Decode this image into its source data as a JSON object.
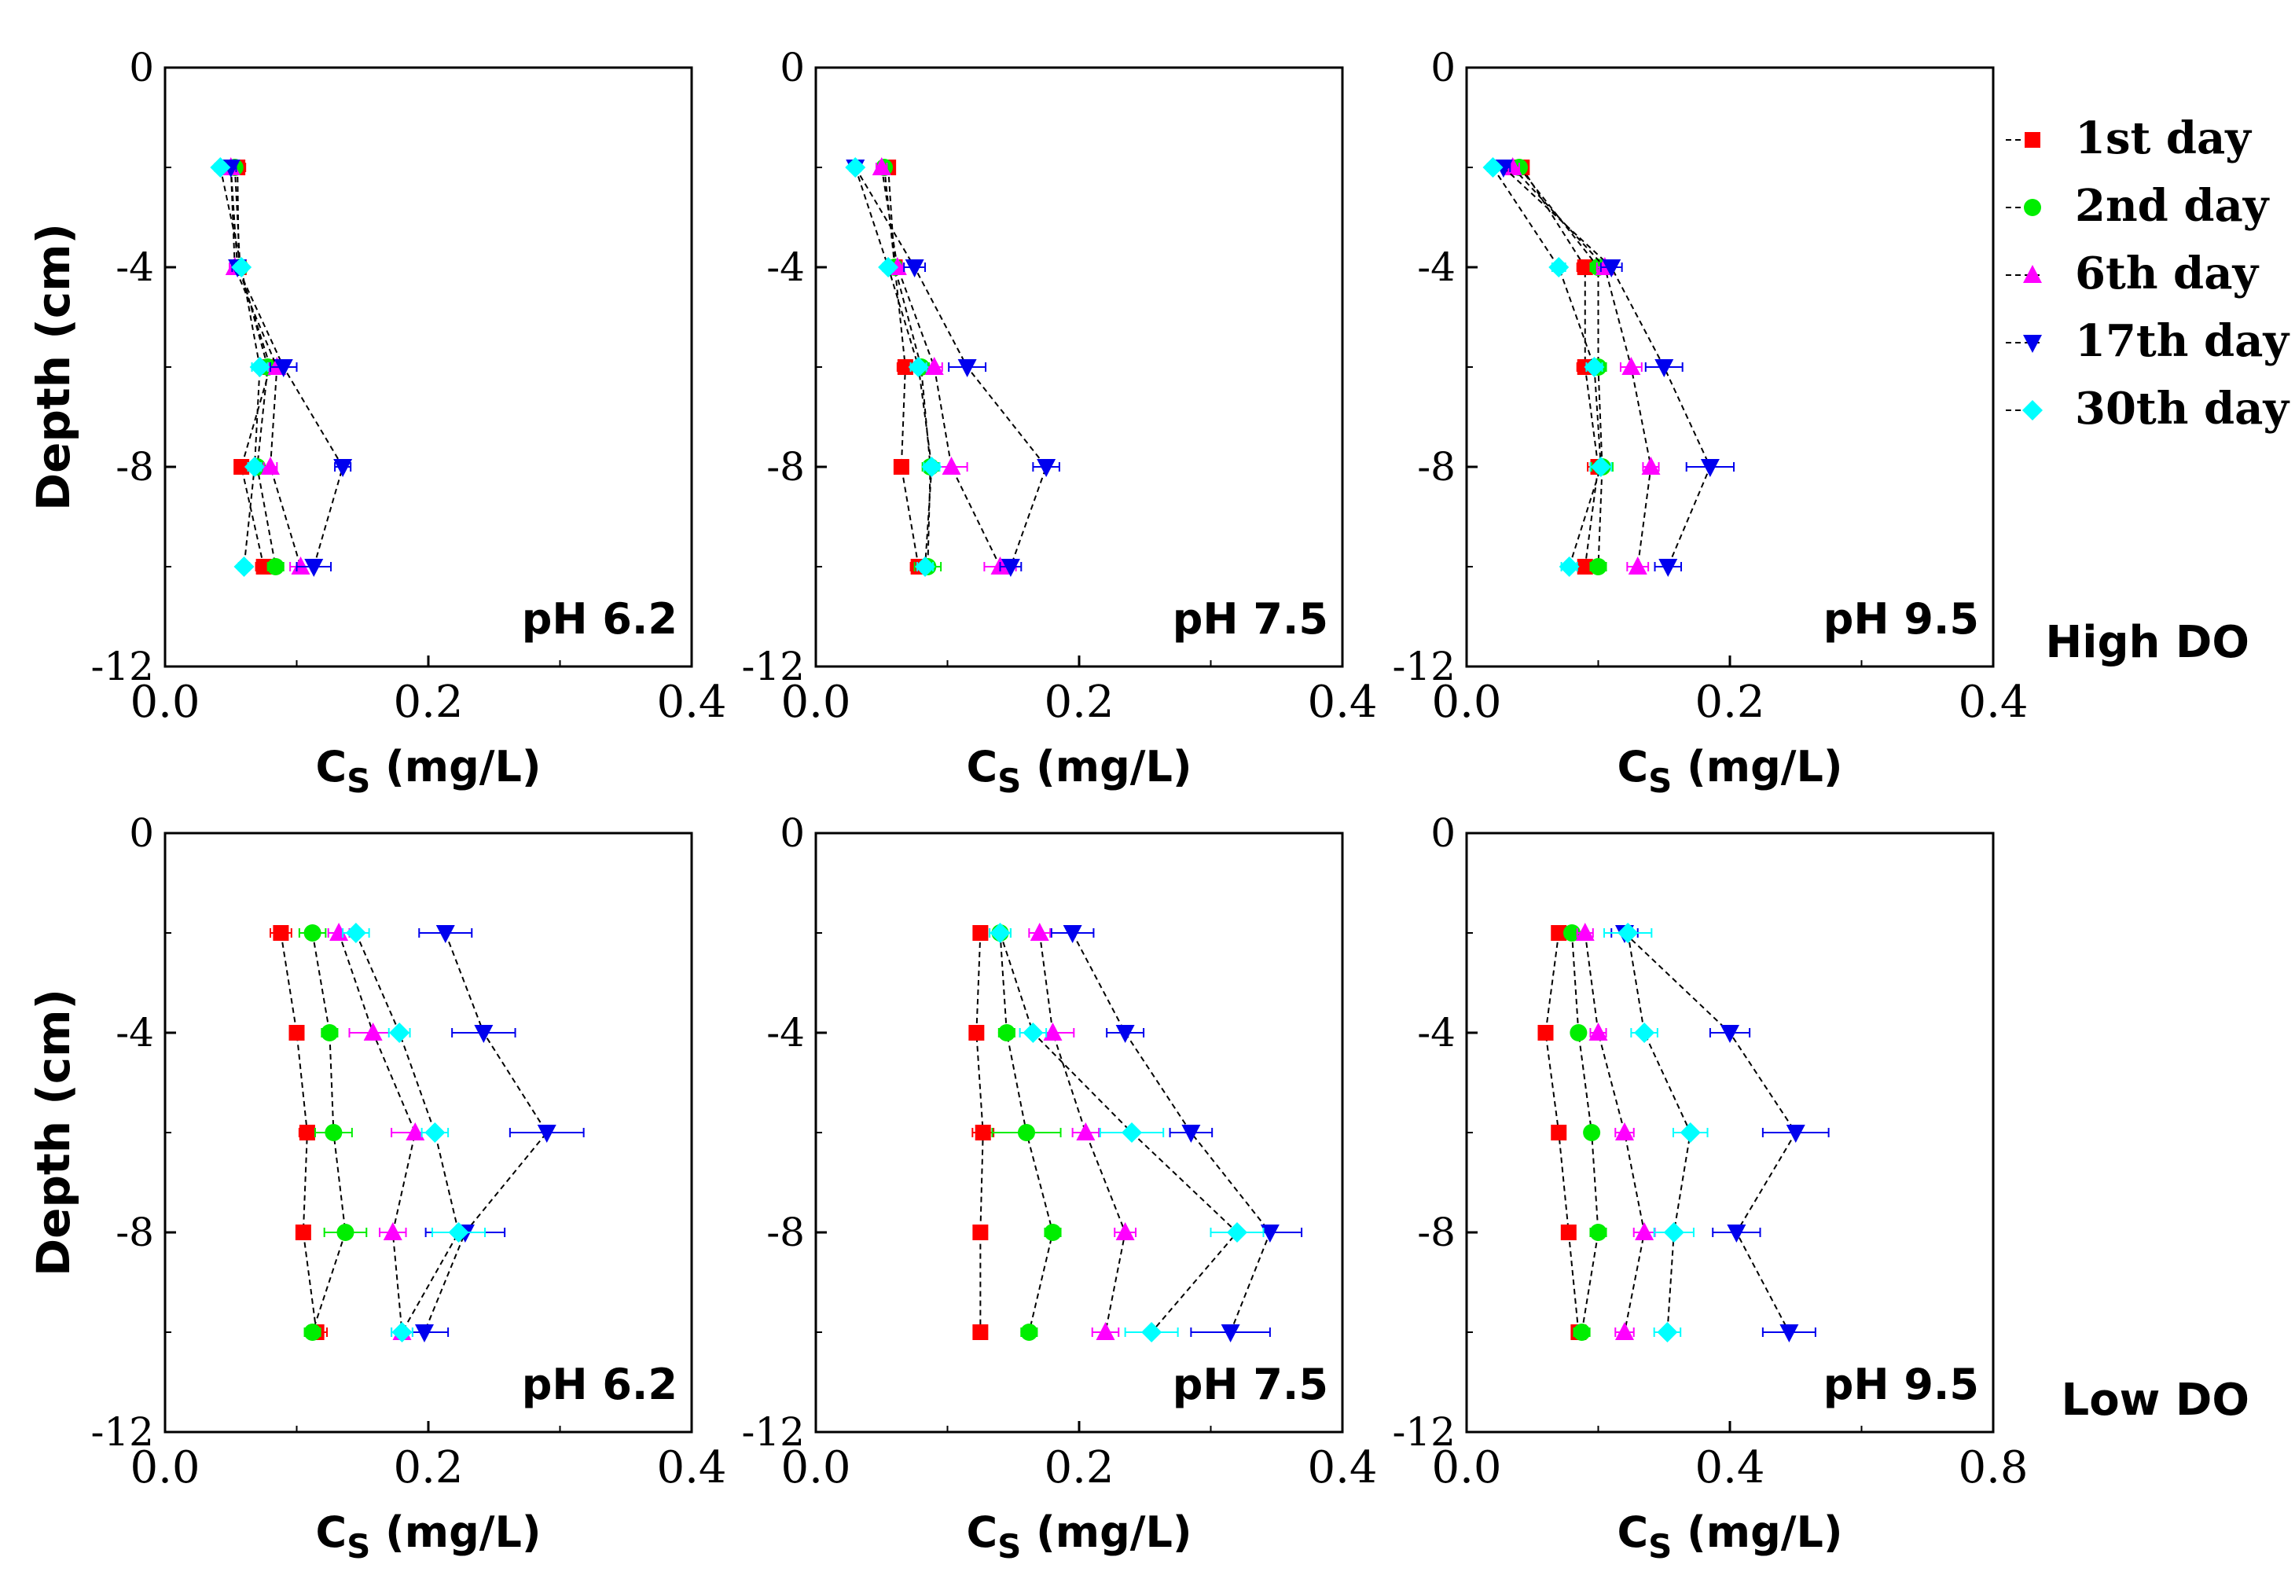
{
  "figure": {
    "legend": [
      {
        "label": "1st day",
        "color": "#ff0000",
        "marker": "square"
      },
      {
        "label": "2nd day",
        "color": "#00ee00",
        "marker": "circle"
      },
      {
        "label": "6th day",
        "color": "#ff00ff",
        "marker": "triangle-up"
      },
      {
        "label": "17th day",
        "color": "#0000ee",
        "marker": "triangle-down"
      },
      {
        "label": "30th day",
        "color": "#00ffff",
        "marker": "diamond"
      }
    ],
    "row_labels": [
      "High DO",
      "Low DO"
    ],
    "y_tick_labels": [
      "0",
      "-4",
      "-8",
      "-12"
    ],
    "x_tick_labels_04": [
      "0.0",
      "0.2",
      "0.4"
    ],
    "x_tick_labels_08": [
      "0.0",
      "0.4",
      "0.8"
    ],
    "xlabel_main": "C",
    "xlabel_sub": "S",
    "xlabel_unit": " (mg/L)",
    "ylabel": "Depth (cm)"
  },
  "chart_data": [
    {
      "type": "scatter",
      "panel": "pH 6.2",
      "row": "High DO",
      "xlim": [
        0,
        0.4
      ],
      "ylim": [
        -12,
        0
      ],
      "y": [
        -2,
        -4,
        -6,
        -8,
        -10
      ],
      "series": [
        {
          "name": "1st day",
          "x": [
            0.055,
            0.056,
            0.08,
            0.058,
            0.075
          ],
          "err": [
            0.006,
            0.004,
            0.006,
            0.005,
            0.006
          ]
        },
        {
          "name": "2nd day",
          "x": [
            0.053,
            0.057,
            0.078,
            0.07,
            0.084
          ],
          "err": [
            0.005,
            0.004,
            0.006,
            0.005,
            0.006
          ]
        },
        {
          "name": "6th day",
          "x": [
            0.05,
            0.053,
            0.085,
            0.08,
            0.103
          ],
          "err": [
            0.004,
            0.004,
            0.006,
            0.005,
            0.008
          ]
        },
        {
          "name": "17th day",
          "x": [
            0.05,
            0.055,
            0.09,
            0.135,
            0.113
          ],
          "err": [
            0.004,
            0.004,
            0.01,
            0.006,
            0.013
          ]
        },
        {
          "name": "30th day",
          "x": [
            0.042,
            0.058,
            0.072,
            0.068,
            0.06
          ],
          "err": [
            0.004,
            0.004,
            0.006,
            0.005,
            0.004
          ]
        }
      ]
    },
    {
      "type": "scatter",
      "panel": "pH 7.5",
      "row": "High DO",
      "xlim": [
        0,
        0.4
      ],
      "ylim": [
        -12,
        0
      ],
      "y": [
        -2,
        -4,
        -6,
        -8,
        -10
      ],
      "series": [
        {
          "name": "1st day",
          "x": [
            0.055,
            0.06,
            0.068,
            0.065,
            0.078
          ],
          "err": [
            0.005,
            0.004,
            0.006,
            0.004,
            0.006
          ]
        },
        {
          "name": "2nd day",
          "x": [
            0.052,
            0.06,
            0.08,
            0.087,
            0.085
          ],
          "err": [
            0.005,
            0.004,
            0.006,
            0.006,
            0.01
          ]
        },
        {
          "name": "6th day",
          "x": [
            0.05,
            0.062,
            0.09,
            0.103,
            0.14
          ],
          "err": [
            0.004,
            0.004,
            0.006,
            0.012,
            0.012
          ]
        },
        {
          "name": "17th day",
          "x": [
            0.03,
            0.075,
            0.115,
            0.175,
            0.148
          ],
          "err": [
            0.004,
            0.008,
            0.014,
            0.01,
            0.008
          ]
        },
        {
          "name": "30th day",
          "x": [
            0.03,
            0.055,
            0.078,
            0.088,
            0.083
          ],
          "err": [
            0.004,
            0.004,
            0.006,
            0.006,
            0.006
          ]
        }
      ]
    },
    {
      "type": "scatter",
      "panel": "pH 9.5",
      "row": "High DO",
      "xlim": [
        0,
        0.4
      ],
      "ylim": [
        -12,
        0
      ],
      "y": [
        -2,
        -4,
        -6,
        -8,
        -10
      ],
      "series": [
        {
          "name": "1st day",
          "x": [
            0.042,
            0.09,
            0.09,
            0.1,
            0.09
          ],
          "err": [
            0.005,
            0.006,
            0.006,
            0.008,
            0.006
          ]
        },
        {
          "name": "2nd day",
          "x": [
            0.04,
            0.1,
            0.1,
            0.103,
            0.1
          ],
          "err": [
            0.005,
            0.006,
            0.006,
            0.008,
            0.006
          ]
        },
        {
          "name": "6th day",
          "x": [
            0.035,
            0.105,
            0.125,
            0.14,
            0.13
          ],
          "err": [
            0.005,
            0.006,
            0.008,
            0.006,
            0.008
          ]
        },
        {
          "name": "17th day",
          "x": [
            0.028,
            0.11,
            0.15,
            0.185,
            0.153
          ],
          "err": [
            0.005,
            0.008,
            0.014,
            0.018,
            0.01
          ]
        },
        {
          "name": "30th day",
          "x": [
            0.02,
            0.07,
            0.097,
            0.102,
            0.078
          ],
          "err": [
            0.004,
            0.005,
            0.006,
            0.008,
            0.006
          ]
        }
      ]
    },
    {
      "type": "scatter",
      "panel": "pH 6.2",
      "row": "Low DO",
      "xlim": [
        0,
        0.4
      ],
      "ylim": [
        -12,
        0
      ],
      "y": [
        -2,
        -4,
        -6,
        -8,
        -10
      ],
      "series": [
        {
          "name": "1st day",
          "x": [
            0.088,
            0.1,
            0.108,
            0.105,
            0.115
          ],
          "err": [
            0.008,
            0.005,
            0.006,
            0.005,
            0.008
          ]
        },
        {
          "name": "2nd day",
          "x": [
            0.112,
            0.125,
            0.128,
            0.137,
            0.112
          ],
          "err": [
            0.01,
            0.006,
            0.014,
            0.016,
            0.006
          ]
        },
        {
          "name": "6th day",
          "x": [
            0.132,
            0.158,
            0.19,
            0.173,
            0.18
          ],
          "err": [
            0.008,
            0.018,
            0.018,
            0.01,
            0.008
          ]
        },
        {
          "name": "17th day",
          "x": [
            0.213,
            0.242,
            0.29,
            0.228,
            0.197
          ],
          "err": [
            0.02,
            0.024,
            0.028,
            0.03,
            0.018
          ]
        },
        {
          "name": "30th day",
          "x": [
            0.145,
            0.178,
            0.205,
            0.223,
            0.18
          ],
          "err": [
            0.01,
            0.008,
            0.01,
            0.02,
            0.008
          ]
        }
      ]
    },
    {
      "type": "scatter",
      "panel": "pH 7.5",
      "row": "Low DO",
      "xlim": [
        0,
        0.4
      ],
      "ylim": [
        -12,
        0
      ],
      "y": [
        -2,
        -4,
        -6,
        -8,
        -10
      ],
      "series": [
        {
          "name": "1st day",
          "x": [
            0.125,
            0.122,
            0.127,
            0.125,
            0.125
          ],
          "err": [
            0.004,
            0.004,
            0.008,
            0.004,
            0.004
          ]
        },
        {
          "name": "2nd day",
          "x": [
            0.14,
            0.145,
            0.16,
            0.18,
            0.162
          ],
          "err": [
            0.008,
            0.006,
            0.026,
            0.006,
            0.006
          ]
        },
        {
          "name": "6th day",
          "x": [
            0.17,
            0.18,
            0.205,
            0.235,
            0.22
          ],
          "err": [
            0.008,
            0.016,
            0.01,
            0.008,
            0.01
          ]
        },
        {
          "name": "17th day",
          "x": [
            0.195,
            0.235,
            0.285,
            0.345,
            0.315
          ],
          "err": [
            0.016,
            0.014,
            0.016,
            0.024,
            0.03
          ]
        },
        {
          "name": "30th day",
          "x": [
            0.14,
            0.165,
            0.24,
            0.32,
            0.255
          ],
          "err": [
            0.008,
            0.01,
            0.024,
            0.02,
            0.02
          ]
        }
      ]
    },
    {
      "type": "scatter",
      "panel": "pH 9.5",
      "row": "Low DO",
      "xlim": [
        0,
        0.8
      ],
      "ylim": [
        -12,
        0
      ],
      "y": [
        -2,
        -4,
        -6,
        -8,
        -10
      ],
      "series": [
        {
          "name": "1st day",
          "x": [
            0.14,
            0.12,
            0.14,
            0.155,
            0.17
          ],
          "err": [
            0.01,
            0.008,
            0.008,
            0.01,
            0.01
          ]
        },
        {
          "name": "2nd day",
          "x": [
            0.16,
            0.17,
            0.19,
            0.2,
            0.175
          ],
          "err": [
            0.01,
            0.008,
            0.01,
            0.012,
            0.012
          ]
        },
        {
          "name": "6th day",
          "x": [
            0.18,
            0.2,
            0.24,
            0.27,
            0.24
          ],
          "err": [
            0.012,
            0.012,
            0.014,
            0.016,
            0.014
          ]
        },
        {
          "name": "17th day",
          "x": [
            0.24,
            0.4,
            0.5,
            0.41,
            0.49
          ],
          "err": [
            0.02,
            0.03,
            0.05,
            0.036,
            0.04
          ]
        },
        {
          "name": "30th day",
          "x": [
            0.245,
            0.27,
            0.34,
            0.315,
            0.305
          ],
          "err": [
            0.036,
            0.02,
            0.026,
            0.03,
            0.02
          ]
        }
      ]
    }
  ]
}
